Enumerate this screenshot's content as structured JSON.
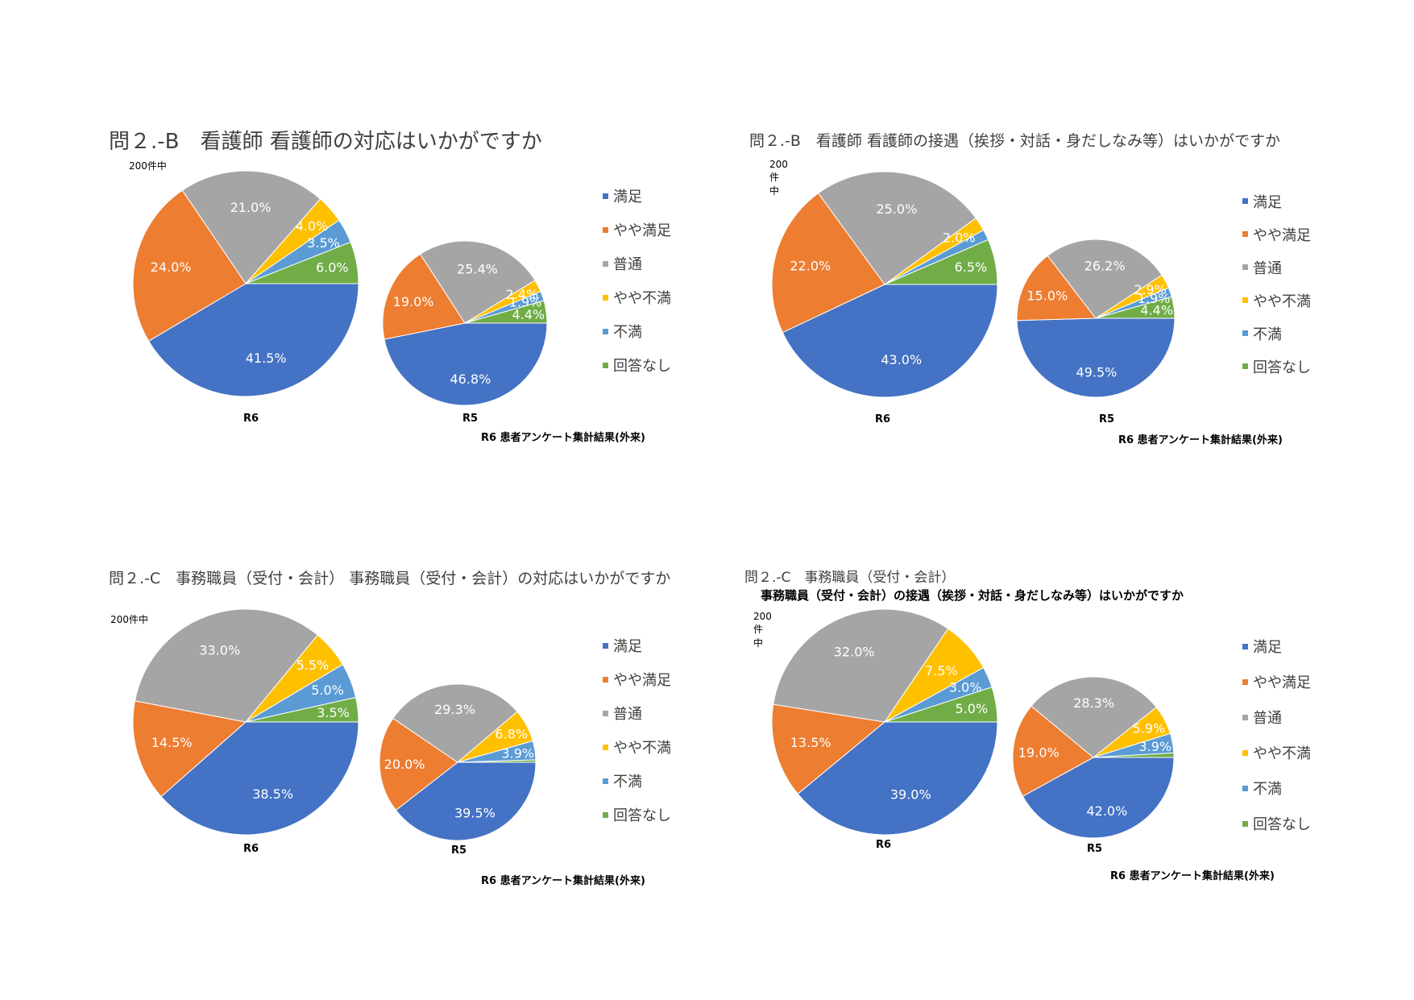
{
  "legend_labels": [
    "満足",
    "やや満足",
    "普通",
    "やや不満",
    "不満",
    "回答なし"
  ],
  "colors": [
    "#4472C4",
    "#ED7D31",
    "#A5A5A5",
    "#FFC000",
    "#5B9BD5",
    "#70AD47"
  ],
  "chart_data": [
    {
      "type": "pie",
      "title": "問２.-B　看護師 看護師の対応はいかがですか",
      "subtitle": "",
      "count_note": "200件中",
      "footer": "R6 患者アンケート集計結果(外来)",
      "pies": [
        {
          "label": "R6",
          "values": [
            41.5,
            24.0,
            21.0,
            4.0,
            3.5,
            6.0
          ],
          "labels": [
            "41.5%",
            "24.0%",
            "21.0%",
            "4.0%",
            "3.5%",
            "6.0%"
          ]
        },
        {
          "label": "R5",
          "values": [
            46.8,
            19.0,
            25.4,
            2.4,
            1.9,
            4.4
          ],
          "labels": [
            "46.8%",
            "19.0%",
            "25.4%",
            "2.4%",
            "1.9%",
            "4.4%"
          ]
        }
      ]
    },
    {
      "type": "pie",
      "title": "問２.-B　看護師 看護師の接遇（挨拶・対話・身だしなみ等）はいかがですか",
      "subtitle": "",
      "count_note": "200件中",
      "footer": "R6 患者アンケート集計結果(外来)",
      "pies": [
        {
          "label": "R6",
          "values": [
            43.0,
            22.0,
            25.0,
            2.0,
            1.5,
            6.5
          ],
          "labels": [
            "43.0%",
            "22.0%",
            "25.0%",
            "2.0%",
            "",
            "6.5%"
          ]
        },
        {
          "label": "R5",
          "values": [
            49.5,
            15.0,
            26.2,
            2.9,
            1.9,
            4.4
          ],
          "labels": [
            "49.5%",
            "15.0%",
            "26.2%",
            "2.9%",
            "1.9%",
            "4.4%"
          ]
        }
      ]
    },
    {
      "type": "pie",
      "title": "問２.-C　事務職員（受付・会計） 事務職員（受付・会計）の対応はいかがですか",
      "subtitle": "",
      "count_note": "200件中",
      "footer": "R6 患者アンケート集計結果(外来)",
      "pies": [
        {
          "label": "R6",
          "values": [
            38.5,
            14.5,
            33.0,
            5.5,
            5.0,
            3.5
          ],
          "labels": [
            "38.5%",
            "14.5%",
            "33.0%",
            "5.5%",
            "5.0%",
            "3.5%"
          ]
        },
        {
          "label": "R5",
          "values": [
            39.5,
            20.0,
            29.3,
            6.8,
            3.9,
            0.5
          ],
          "labels": [
            "39.5%",
            "20.0%",
            "29.3%",
            "6.8%",
            "3.9%",
            ""
          ]
        }
      ]
    },
    {
      "type": "pie",
      "title": "問２.-C　事務職員（受付・会計）",
      "subtitle": "事務職員（受付・会計）の接遇（挨拶・対話・身だしなみ等）はいかがですか",
      "count_note": "200件中",
      "footer": "R6 患者アンケート集計結果(外来)",
      "pies": [
        {
          "label": "R6",
          "values": [
            39.0,
            13.5,
            32.0,
            7.5,
            3.0,
            5.0
          ],
          "labels": [
            "39.0%",
            "13.5%",
            "32.0%",
            "7.5%",
            "3.0%",
            "5.0%"
          ]
        },
        {
          "label": "R5",
          "values": [
            42.0,
            19.0,
            28.3,
            5.9,
            3.9,
            0.9
          ],
          "labels": [
            "42.0%",
            "19.0%",
            "28.3%",
            "5.9%",
            "3.9%",
            ""
          ]
        }
      ]
    }
  ]
}
